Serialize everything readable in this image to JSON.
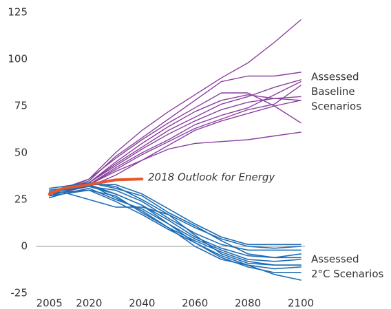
{
  "chart_data": {
    "type": "line",
    "x": [
      2005,
      2010,
      2020,
      2030,
      2040,
      2050,
      2060,
      2070,
      2080,
      2090,
      2100
    ],
    "xlim": [
      2000,
      2100
    ],
    "xticks": [
      2005,
      2020,
      2040,
      2060,
      2080,
      2100
    ],
    "ylim": [
      -25,
      125
    ],
    "yticks": [
      -25,
      0,
      25,
      50,
      75,
      100,
      125
    ],
    "zero_line": true,
    "series": [
      {
        "name": [
          "Assessed",
          "Baseline",
          "Scenarios"
        ],
        "color": "#8a3f9e",
        "width": 1.4,
        "lines": [
          [
            28,
            30,
            36,
            50,
            62,
            72,
            81,
            90,
            98,
            109,
            121
          ],
          [
            28,
            30,
            35,
            48,
            58,
            68,
            78,
            88,
            91,
            91,
            93
          ],
          [
            29,
            31,
            36,
            47,
            57,
            66,
            74,
            82,
            82,
            75,
            66
          ],
          [
            27,
            29,
            33,
            40,
            46,
            52,
            55,
            56,
            57,
            59,
            61
          ],
          [
            28,
            30,
            34,
            44,
            53,
            62,
            69,
            76,
            80,
            85,
            89
          ],
          [
            28,
            29,
            33,
            42,
            50,
            57,
            65,
            70,
            74,
            81,
            88
          ],
          [
            29,
            30,
            34,
            43,
            52,
            60,
            67,
            73,
            77,
            79,
            80
          ],
          [
            28,
            30,
            33,
            41,
            49,
            56,
            63,
            68,
            73,
            76,
            86
          ],
          [
            28,
            30,
            34,
            45,
            55,
            64,
            72,
            78,
            81,
            79,
            78
          ],
          [
            27,
            29,
            32,
            38,
            46,
            54,
            62,
            67,
            71,
            75,
            78
          ]
        ]
      },
      {
        "name": [
          "Assessed",
          "2°C Scenarios"
        ],
        "color": "#1e6db4",
        "width": 1.6,
        "lines": [
          [
            27,
            29,
            33,
            33,
            28,
            20,
            12,
            5,
            1,
            1,
            1
          ],
          [
            30,
            31,
            34,
            32,
            25,
            17,
            10,
            4,
            0,
            -1,
            0
          ],
          [
            28,
            30,
            32,
            30,
            24,
            15,
            7,
            1,
            -2,
            -2,
            -2
          ],
          [
            29,
            30,
            33,
            28,
            22,
            14,
            5,
            -1,
            -5,
            -6,
            -4
          ],
          [
            26,
            28,
            31,
            25,
            20,
            12,
            4,
            -2,
            -7,
            -8,
            -7
          ],
          [
            30,
            31,
            33,
            26,
            19,
            10,
            3,
            -3,
            -8,
            -10,
            -10
          ],
          [
            28,
            29,
            25,
            21,
            21,
            17,
            6,
            -4,
            -9,
            -10,
            -10
          ],
          [
            27,
            28,
            30,
            27,
            18,
            10,
            0,
            -7,
            -10,
            -12,
            -11
          ],
          [
            29,
            30,
            32,
            28,
            22,
            12,
            2,
            -6,
            -11,
            -14,
            -14
          ],
          [
            28,
            29,
            30,
            24,
            17,
            9,
            2,
            -5,
            -10,
            -15,
            -18
          ],
          [
            31,
            32,
            34,
            31,
            27,
            18,
            11,
            3,
            -4,
            -6,
            -6
          ]
        ]
      },
      {
        "name": [
          "2018 Outlook for Energy"
        ],
        "color": "#e8562a",
        "label_color": "#e23b32",
        "width": 4,
        "lines": [
          [
            28,
            31,
            33,
            35.5,
            36,
            null,
            null,
            null,
            null,
            null,
            null
          ]
        ]
      }
    ]
  }
}
